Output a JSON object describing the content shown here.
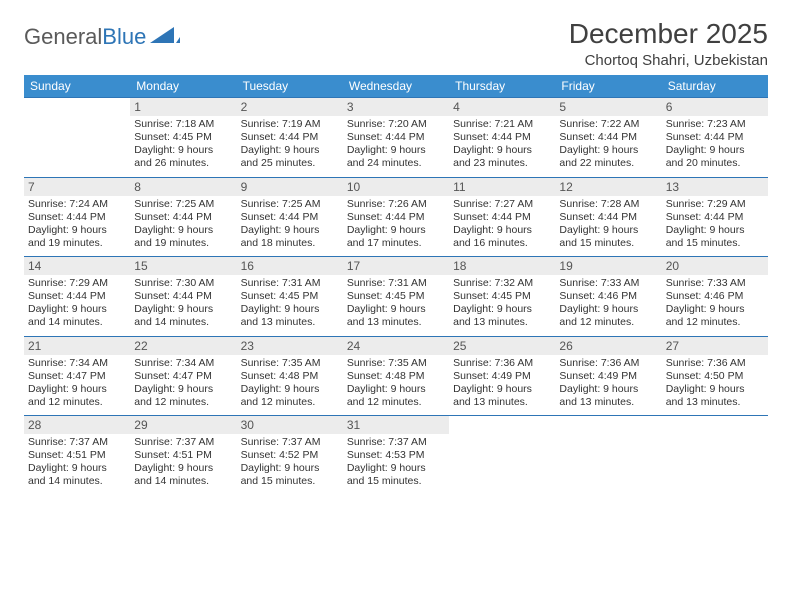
{
  "logo": {
    "word1": "General",
    "word2": "Blue"
  },
  "title": "December 2025",
  "location": "Chortoq Shahri, Uzbekistan",
  "colors": {
    "header_bg": "#3a8dce",
    "rule": "#2e75b6",
    "daynum_bg": "#ececec",
    "text": "#333333",
    "logo_gray": "#5a5a5a",
    "logo_blue": "#2e75b6"
  },
  "day_labels": [
    "Sunday",
    "Monday",
    "Tuesday",
    "Wednesday",
    "Thursday",
    "Friday",
    "Saturday"
  ],
  "weeks": [
    [
      null,
      {
        "n": "1",
        "sr": "7:18 AM",
        "ss": "4:45 PM",
        "dl": "9 hours and 26 minutes."
      },
      {
        "n": "2",
        "sr": "7:19 AM",
        "ss": "4:44 PM",
        "dl": "9 hours and 25 minutes."
      },
      {
        "n": "3",
        "sr": "7:20 AM",
        "ss": "4:44 PM",
        "dl": "9 hours and 24 minutes."
      },
      {
        "n": "4",
        "sr": "7:21 AM",
        "ss": "4:44 PM",
        "dl": "9 hours and 23 minutes."
      },
      {
        "n": "5",
        "sr": "7:22 AM",
        "ss": "4:44 PM",
        "dl": "9 hours and 22 minutes."
      },
      {
        "n": "6",
        "sr": "7:23 AM",
        "ss": "4:44 PM",
        "dl": "9 hours and 20 minutes."
      }
    ],
    [
      {
        "n": "7",
        "sr": "7:24 AM",
        "ss": "4:44 PM",
        "dl": "9 hours and 19 minutes."
      },
      {
        "n": "8",
        "sr": "7:25 AM",
        "ss": "4:44 PM",
        "dl": "9 hours and 19 minutes."
      },
      {
        "n": "9",
        "sr": "7:25 AM",
        "ss": "4:44 PM",
        "dl": "9 hours and 18 minutes."
      },
      {
        "n": "10",
        "sr": "7:26 AM",
        "ss": "4:44 PM",
        "dl": "9 hours and 17 minutes."
      },
      {
        "n": "11",
        "sr": "7:27 AM",
        "ss": "4:44 PM",
        "dl": "9 hours and 16 minutes."
      },
      {
        "n": "12",
        "sr": "7:28 AM",
        "ss": "4:44 PM",
        "dl": "9 hours and 15 minutes."
      },
      {
        "n": "13",
        "sr": "7:29 AM",
        "ss": "4:44 PM",
        "dl": "9 hours and 15 minutes."
      }
    ],
    [
      {
        "n": "14",
        "sr": "7:29 AM",
        "ss": "4:44 PM",
        "dl": "9 hours and 14 minutes."
      },
      {
        "n": "15",
        "sr": "7:30 AM",
        "ss": "4:44 PM",
        "dl": "9 hours and 14 minutes."
      },
      {
        "n": "16",
        "sr": "7:31 AM",
        "ss": "4:45 PM",
        "dl": "9 hours and 13 minutes."
      },
      {
        "n": "17",
        "sr": "7:31 AM",
        "ss": "4:45 PM",
        "dl": "9 hours and 13 minutes."
      },
      {
        "n": "18",
        "sr": "7:32 AM",
        "ss": "4:45 PM",
        "dl": "9 hours and 13 minutes."
      },
      {
        "n": "19",
        "sr": "7:33 AM",
        "ss": "4:46 PM",
        "dl": "9 hours and 12 minutes."
      },
      {
        "n": "20",
        "sr": "7:33 AM",
        "ss": "4:46 PM",
        "dl": "9 hours and 12 minutes."
      }
    ],
    [
      {
        "n": "21",
        "sr": "7:34 AM",
        "ss": "4:47 PM",
        "dl": "9 hours and 12 minutes."
      },
      {
        "n": "22",
        "sr": "7:34 AM",
        "ss": "4:47 PM",
        "dl": "9 hours and 12 minutes."
      },
      {
        "n": "23",
        "sr": "7:35 AM",
        "ss": "4:48 PM",
        "dl": "9 hours and 12 minutes."
      },
      {
        "n": "24",
        "sr": "7:35 AM",
        "ss": "4:48 PM",
        "dl": "9 hours and 12 minutes."
      },
      {
        "n": "25",
        "sr": "7:36 AM",
        "ss": "4:49 PM",
        "dl": "9 hours and 13 minutes."
      },
      {
        "n": "26",
        "sr": "7:36 AM",
        "ss": "4:49 PM",
        "dl": "9 hours and 13 minutes."
      },
      {
        "n": "27",
        "sr": "7:36 AM",
        "ss": "4:50 PM",
        "dl": "9 hours and 13 minutes."
      }
    ],
    [
      {
        "n": "28",
        "sr": "7:37 AM",
        "ss": "4:51 PM",
        "dl": "9 hours and 14 minutes."
      },
      {
        "n": "29",
        "sr": "7:37 AM",
        "ss": "4:51 PM",
        "dl": "9 hours and 14 minutes."
      },
      {
        "n": "30",
        "sr": "7:37 AM",
        "ss": "4:52 PM",
        "dl": "9 hours and 15 minutes."
      },
      {
        "n": "31",
        "sr": "7:37 AM",
        "ss": "4:53 PM",
        "dl": "9 hours and 15 minutes."
      },
      null,
      null,
      null
    ]
  ],
  "labels": {
    "sunrise": "Sunrise:",
    "sunset": "Sunset:",
    "daylight": "Daylight:"
  }
}
